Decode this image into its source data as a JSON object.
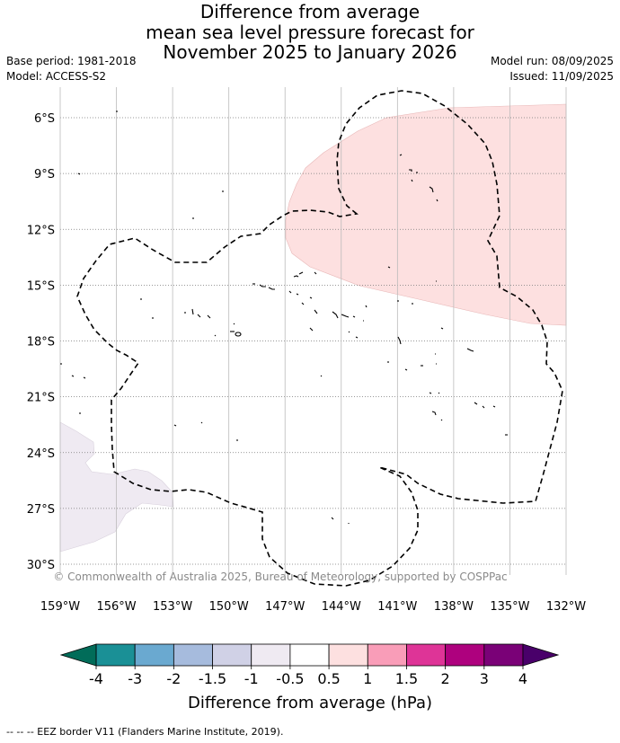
{
  "title": {
    "line1": "Difference from average",
    "line2": "mean sea level pressure forecast for",
    "line3": "November 2025 to January 2026"
  },
  "meta": {
    "base_period": "Base period: 1981-2018",
    "model": "Model: ACCESS-S2",
    "model_run": "Model run: 08/09/2025",
    "issued": "Issued: 11/09/2025"
  },
  "map": {
    "lat_labels": [
      "6°S",
      "9°S",
      "12°S",
      "15°S",
      "18°S",
      "21°S",
      "24°S",
      "27°S",
      "30°S"
    ],
    "lat_values": [
      -6,
      -9,
      -12,
      -15,
      -18,
      -21,
      -24,
      -27,
      -30
    ],
    "lon_labels": [
      "159°W",
      "156°W",
      "153°W",
      "150°W",
      "147°W",
      "144°W",
      "141°W",
      "138°W",
      "135°W",
      "132°W"
    ],
    "lon_values": [
      -159,
      -156,
      -153,
      -150,
      -147,
      -144,
      -141,
      -138,
      -135,
      -132
    ],
    "copyright": "© Commonwealth of Australia 2025, Bureau of Meteorology, supported by COSPPac",
    "anomaly_colors": {
      "positive_0_5_to_1": "#fde0e0",
      "negative_0_5_to_1": "#efeaf2"
    }
  },
  "colorbar": {
    "tick_labels": [
      "-4",
      "-3",
      "-2",
      "-1.5",
      "-1",
      "-0.5",
      "0.5",
      "1",
      "1.5",
      "2",
      "3",
      "4"
    ],
    "colors": [
      "#1a9096",
      "#6aa9d0",
      "#a6bbdd",
      "#d0d1e6",
      "#efeaf2",
      "#ffffff",
      "#fde0e0",
      "#f99db8",
      "#de3497",
      "#ae017e",
      "#7a0177"
    ],
    "under_color": "#016c59",
    "over_color": "#49006a",
    "label": "Difference from average (hPa)"
  },
  "footer": "--  --  -- EEZ border V11 (Flanders Marine Institute, 2019)."
}
